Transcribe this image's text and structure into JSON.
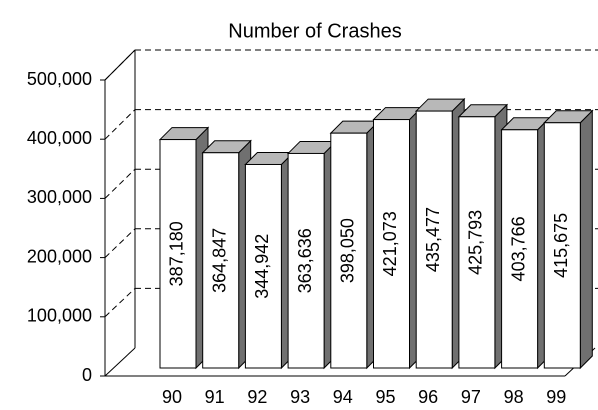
{
  "chart_data": {
    "type": "bar3d",
    "title": "Number of Crashes",
    "categories": [
      "90",
      "91",
      "92",
      "93",
      "94",
      "95",
      "96",
      "97",
      "98",
      "99"
    ],
    "values": [
      387180,
      364847,
      344942,
      363636,
      398050,
      421073,
      435477,
      425793,
      403766,
      415675
    ],
    "value_labels": [
      "387,180",
      "364,847",
      "344,942",
      "363,636",
      "398,050",
      "421,073",
      "435,477",
      "425,793",
      "403,766",
      "415,675"
    ],
    "color": "#ffffff",
    "ylim": [
      0,
      500000
    ],
    "yticks": [
      {
        "value": 0,
        "label": "0"
      },
      {
        "value": 100000,
        "label": "100,000"
      },
      {
        "value": 200000,
        "label": "200,000"
      },
      {
        "value": 300000,
        "label": "300,000"
      },
      {
        "value": 400000,
        "label": "400,000"
      },
      {
        "value": 500000,
        "label": "500,000"
      }
    ],
    "grid": true
  }
}
